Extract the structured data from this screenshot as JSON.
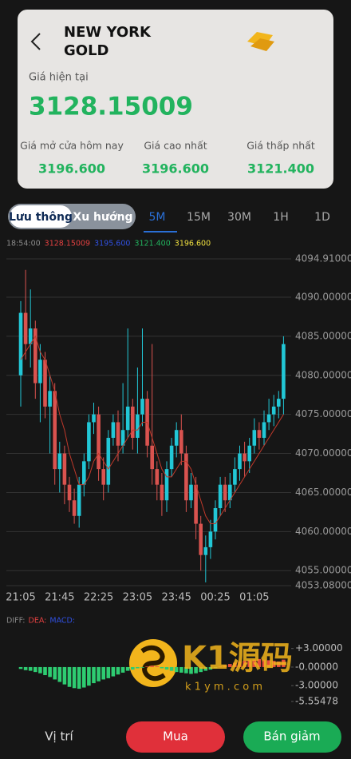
{
  "header": {
    "title": [
      "NEW YORK",
      "GOLD"
    ],
    "price_label": "Giá hiện tại",
    "price": "3128.15009",
    "stats": [
      {
        "label": "Giá mở cửa hôm nay",
        "value": "3196.600"
      },
      {
        "label": "Giá cao nhất",
        "value": "3196.600"
      },
      {
        "label": "Giá thấp nhất",
        "value": "3121.400"
      }
    ]
  },
  "tabs": {
    "modes": [
      "Lưu thông",
      "Xu hướng"
    ],
    "periods": [
      "5M",
      "15M",
      "30M",
      "1H",
      "1D"
    ]
  },
  "info_bar": [
    {
      "text": "18:54:00",
      "color": "#8a8a8a"
    },
    {
      "text": "3128.15009",
      "color": "#e04040"
    },
    {
      "text": "3195.600",
      "color": "#3050e0"
    },
    {
      "text": "3121.400",
      "color": "#22b35e"
    },
    {
      "text": "3196.600",
      "color": "#f0e040"
    }
  ],
  "watermark": {
    "brand": "K1源码",
    "site": "k 1 y m . c o m"
  },
  "buttons": {
    "position": "Vị trí",
    "buy": "Mua",
    "sell": "Bán giảm"
  },
  "chart_data": [
    {
      "type": "candlestick",
      "up_color": "#22c7d6",
      "down_color": "#d9534f",
      "categories": [
        "21:05",
        null,
        null,
        null,
        null,
        null,
        null,
        null,
        "21:45",
        null,
        null,
        null,
        null,
        null,
        null,
        null,
        "22:25",
        null,
        null,
        null,
        null,
        null,
        null,
        null,
        "23:05",
        null,
        null,
        null,
        null,
        null,
        null,
        null,
        "23:45",
        null,
        null,
        null,
        null,
        null,
        null,
        null,
        "00:25",
        null,
        null,
        null,
        null,
        null,
        null,
        null,
        "01:05",
        null,
        null,
        null,
        null,
        null,
        null
      ],
      "open": [
        4080,
        4088,
        4084,
        4086,
        4079,
        4082,
        4076,
        4078,
        4068,
        4070,
        4066,
        4064,
        4062,
        4066,
        4069,
        4074,
        4075,
        4068,
        4066,
        4072,
        4074,
        4071,
        4073,
        4076,
        4072,
        4075,
        4077,
        4071,
        4068,
        4066,
        4064,
        4068,
        4071,
        4073,
        4070,
        4064,
        4066,
        4061,
        4057,
        4058,
        4060,
        4063,
        4066,
        4064,
        4066,
        4068,
        4070,
        4069,
        4071,
        4073,
        4072,
        4074,
        4075,
        4076,
        4077
      ],
      "close": [
        4088,
        4084,
        4086,
        4079,
        4082,
        4076,
        4078,
        4068,
        4070,
        4066,
        4064,
        4062,
        4066,
        4069,
        4074,
        4075,
        4068,
        4066,
        4072,
        4074,
        4071,
        4073,
        4076,
        4072,
        4075,
        4077,
        4071,
        4068,
        4066,
        4064,
        4068,
        4071,
        4073,
        4070,
        4064,
        4066,
        4061,
        4057,
        4058,
        4060,
        4063,
        4066,
        4064,
        4066,
        4068,
        4070,
        4069,
        4071,
        4073,
        4072,
        4074,
        4075,
        4076,
        4077,
        4084
      ],
      "high": [
        4089.5,
        4093.5,
        4091,
        4087,
        4084,
        4083,
        4080,
        4079,
        4071.5,
        4071,
        4067,
        4065.5,
        4067,
        4070,
        4075,
        4076.5,
        4076,
        4069.5,
        4073,
        4075,
        4075.5,
        4079,
        4086,
        4077,
        4081,
        4086,
        4078,
        4084,
        4069,
        4067.5,
        4069,
        4072,
        4074,
        4075,
        4071,
        4067.5,
        4067,
        4062,
        4059.5,
        4061.5,
        4064,
        4067,
        4067,
        4067.5,
        4069.5,
        4071,
        4071.5,
        4072,
        4074.5,
        4074,
        4075.5,
        4077,
        4077.5,
        4078,
        4085
      ],
      "low": [
        4076,
        4082,
        4081,
        4077,
        4074,
        4074.5,
        4070,
        4066,
        4065,
        4063.5,
        4062.5,
        4061,
        4060.5,
        4064.5,
        4068,
        4072.5,
        4066.5,
        4064,
        4065,
        4071,
        4069,
        4070,
        4072,
        4070.5,
        4070,
        4073.5,
        4069.5,
        4066,
        4064,
        4062,
        4062.5,
        4067,
        4069.5,
        4068.5,
        4062.5,
        4063,
        4059,
        4055,
        4053.5,
        4056.5,
        4059,
        4062,
        4062.5,
        4063,
        4065,
        4066.5,
        4067,
        4067.5,
        4070,
        4070.5,
        4071,
        4073,
        4073.5,
        4074.5,
        4075
      ],
      "series": [
        {
          "color": "#c0392b",
          "values": [
            4082,
            4083,
            4084,
            4085,
            4083,
            4082,
            4080,
            4078,
            4075,
            4073,
            4070,
            4068,
            4066,
            4066,
            4067,
            4069,
            4070,
            4069,
            4068,
            4069,
            4070,
            4071,
            4072,
            4073,
            4073,
            4074,
            4074,
            4072,
            4070,
            4068,
            4067,
            4067,
            4068,
            4069,
            4069,
            4068,
            4066,
            4064,
            4062,
            4061,
            4061,
            4062,
            4063,
            4064,
            4065,
            4066,
            4067,
            4068,
            4069,
            4070,
            4071,
            4072,
            4073,
            4074,
            4075
          ]
        }
      ],
      "ylim": [
        4053.08,
        4094.91
      ],
      "yticks": [
        {
          "value": 4094.91,
          "label": "4094.91000"
        },
        {
          "value": 4090,
          "label": "4090.00000"
        },
        {
          "value": 4085,
          "label": "4085.00000"
        },
        {
          "value": 4080,
          "label": "4080.00000"
        },
        {
          "value": 4075,
          "label": "4075.00000"
        },
        {
          "value": 4070,
          "label": "4070.00000"
        },
        {
          "value": 4065,
          "label": "4065.00000"
        },
        {
          "value": 4060,
          "label": "4060.00000"
        },
        {
          "value": 4055,
          "label": "4055.00000"
        },
        {
          "value": 4053.08,
          "label": "4053.08000"
        }
      ],
      "grid": true
    },
    {
      "type": "bar",
      "legend": [
        {
          "text": "DIFF:",
          "color": "#8a8a8a"
        },
        {
          "text": "DEA:",
          "color": "#e04040"
        },
        {
          "text": "MACD:",
          "color": "#3050e0"
        }
      ],
      "pos_color": "#e74c3c",
      "neg_color": "#2ecc71",
      "values": [
        -0.3,
        -0.5,
        -0.6,
        -0.8,
        -1.0,
        -1.3,
        -1.6,
        -2.0,
        -2.4,
        -2.8,
        -3.2,
        -3.4,
        -3.5,
        -3.3,
        -3.0,
        -2.6,
        -2.3,
        -2.0,
        -1.8,
        -1.5,
        -1.2,
        -0.9,
        -0.6,
        -0.4,
        -0.2,
        -0.1,
        0.1,
        0.2,
        0.1,
        -0.2,
        -0.4,
        -0.6,
        -0.8,
        -0.9,
        -1.0,
        -1.1,
        -1.0,
        -0.8,
        -0.6,
        -0.4,
        -0.2,
        0.1,
        0.3,
        0.5,
        0.7,
        0.9,
        1.0,
        1.1,
        1.2,
        1.3,
        1.2,
        1.1,
        1.0,
        0.9,
        1.2
      ],
      "ylim": [
        -5.55478,
        5.8
      ],
      "yticks": [
        {
          "value": 3,
          "label": "+3.00000"
        },
        {
          "value": 0,
          "label": "-0.00000"
        },
        {
          "value": -3,
          "label": "-3.00000"
        },
        {
          "value": -5.55478,
          "label": "-5.55478"
        }
      ]
    }
  ]
}
